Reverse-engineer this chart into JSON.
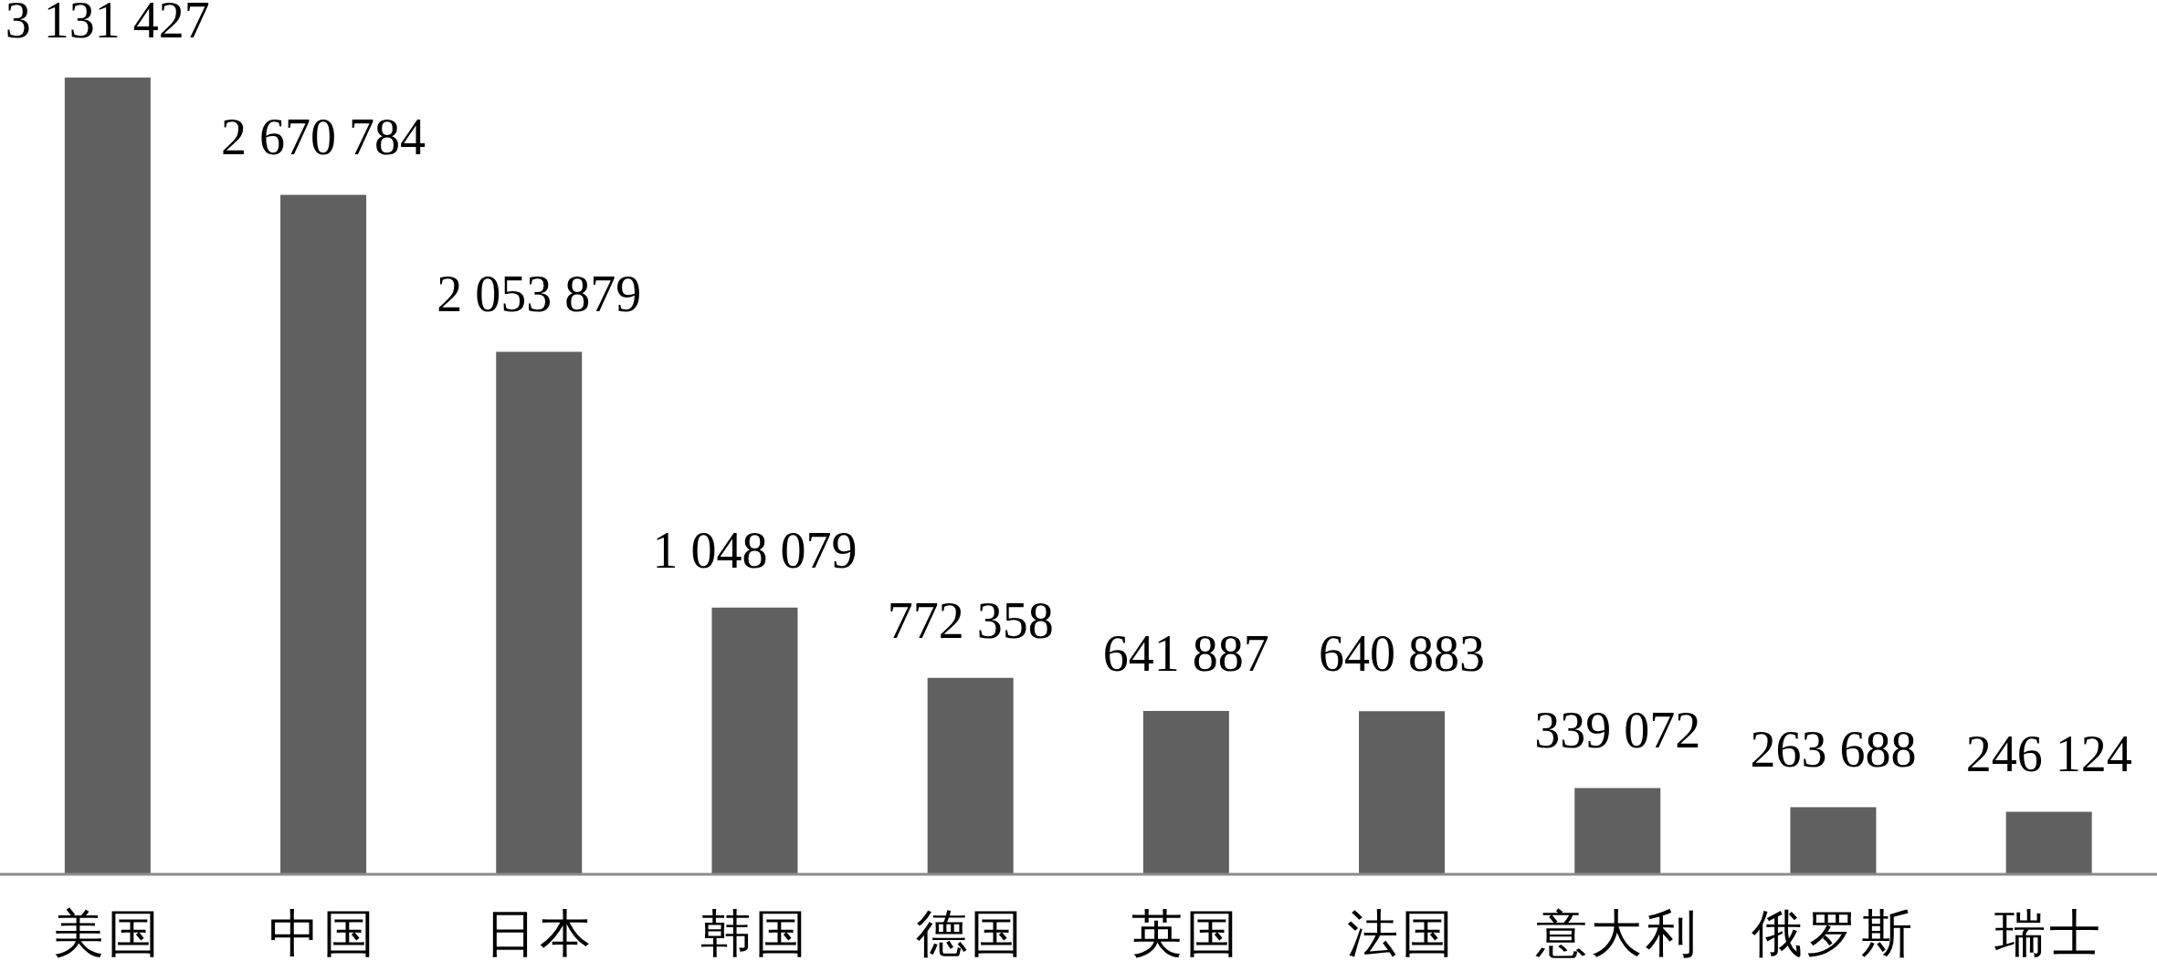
{
  "chart_data": {
    "type": "bar",
    "categories": [
      "美国",
      "中国",
      "日本",
      "韩国",
      "德国",
      "英国",
      "法国",
      "意大利",
      "俄罗斯",
      "瑞士"
    ],
    "values": [
      3131427,
      2670784,
      2053879,
      1048079,
      772358,
      641887,
      640883,
      339072,
      263688,
      246124
    ],
    "value_labels": [
      "3 131 427",
      "2 670 784",
      "2 053 879",
      "1 048 079",
      "772 358",
      "641 887",
      "640 883",
      "339 072",
      "263 688",
      "246 124"
    ],
    "color": "#606060",
    "tick_labels": "x"
  }
}
